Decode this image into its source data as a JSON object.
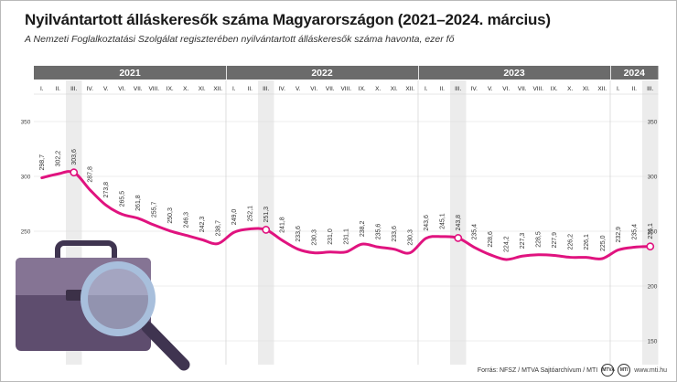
{
  "title": "Nyilvántartott álláskeresők száma Magyarországon (2021–2024. március)",
  "subtitle": "A Nemzeti Foglalkoztatási Szolgálat regiszterében nyilvántartott álláskeresők száma havonta, ezer fő",
  "footer": {
    "source": "Forrás: NFSZ / MTVA Sajtóarchívum / MTI",
    "logo1": "MTVA",
    "logo2": "MTI",
    "site": "www.mti.hu"
  },
  "colors": {
    "line": "#e0137f",
    "year_band": "#6b6b6b",
    "march_band": "#ececec",
    "grid": "#dcdcdc"
  },
  "icons": [
    "briefcase-icon",
    "magnifier-icon"
  ],
  "chart_data": {
    "type": "line",
    "years": [
      {
        "label": "2021",
        "months": [
          "I.",
          "II.",
          "III.",
          "IV.",
          "V.",
          "VI.",
          "VII.",
          "VIII.",
          "IX.",
          "X.",
          "XI.",
          "XII."
        ]
      },
      {
        "label": "2022",
        "months": [
          "I.",
          "II.",
          "III.",
          "IV.",
          "V.",
          "VI.",
          "VII.",
          "VIII.",
          "IX.",
          "X.",
          "XI.",
          "XII."
        ]
      },
      {
        "label": "2023",
        "months": [
          "I.",
          "II.",
          "III.",
          "IV.",
          "V.",
          "VI.",
          "VII.",
          "VIII.",
          "IX.",
          "X.",
          "XI.",
          "XII."
        ]
      },
      {
        "label": "2024",
        "months": [
          "I.",
          "II.",
          "III."
        ]
      }
    ],
    "values": [
      298.7,
      302.2,
      303.6,
      287.8,
      273.8,
      265.5,
      261.8,
      255.7,
      250.3,
      246.3,
      242.3,
      238.7,
      249.0,
      252.1,
      251.3,
      241.8,
      233.6,
      230.3,
      231.0,
      231.1,
      238.2,
      235.6,
      233.6,
      230.3,
      243.6,
      245.1,
      243.8,
      235.4,
      228.6,
      224.2,
      227.3,
      228.5,
      227.9,
      226.2,
      226.1,
      225.0,
      232.9,
      235.4,
      236.1
    ],
    "labels": [
      "298,7",
      "302,2",
      "303,6",
      "287,8",
      "273,8",
      "265,5",
      "261,8",
      "255,7",
      "250,3",
      "246,3",
      "242,3",
      "238,7",
      "249,0",
      "252,1",
      "251,3",
      "241,8",
      "233,6",
      "230,3",
      "231,0",
      "231,1",
      "238,2",
      "235,6",
      "233,6",
      "230,3",
      "243,6",
      "245,1",
      "243,8",
      "235,4",
      "228,6",
      "224,2",
      "227,3",
      "228,5",
      "227,9",
      "226,2",
      "226,1",
      "225,0",
      "232,9",
      "235,4",
      "236,1"
    ],
    "highlighted_points": [
      2,
      14,
      26,
      38
    ],
    "yticks": [
      350,
      300,
      250,
      200,
      150
    ],
    "ylim": [
      150,
      350
    ]
  }
}
